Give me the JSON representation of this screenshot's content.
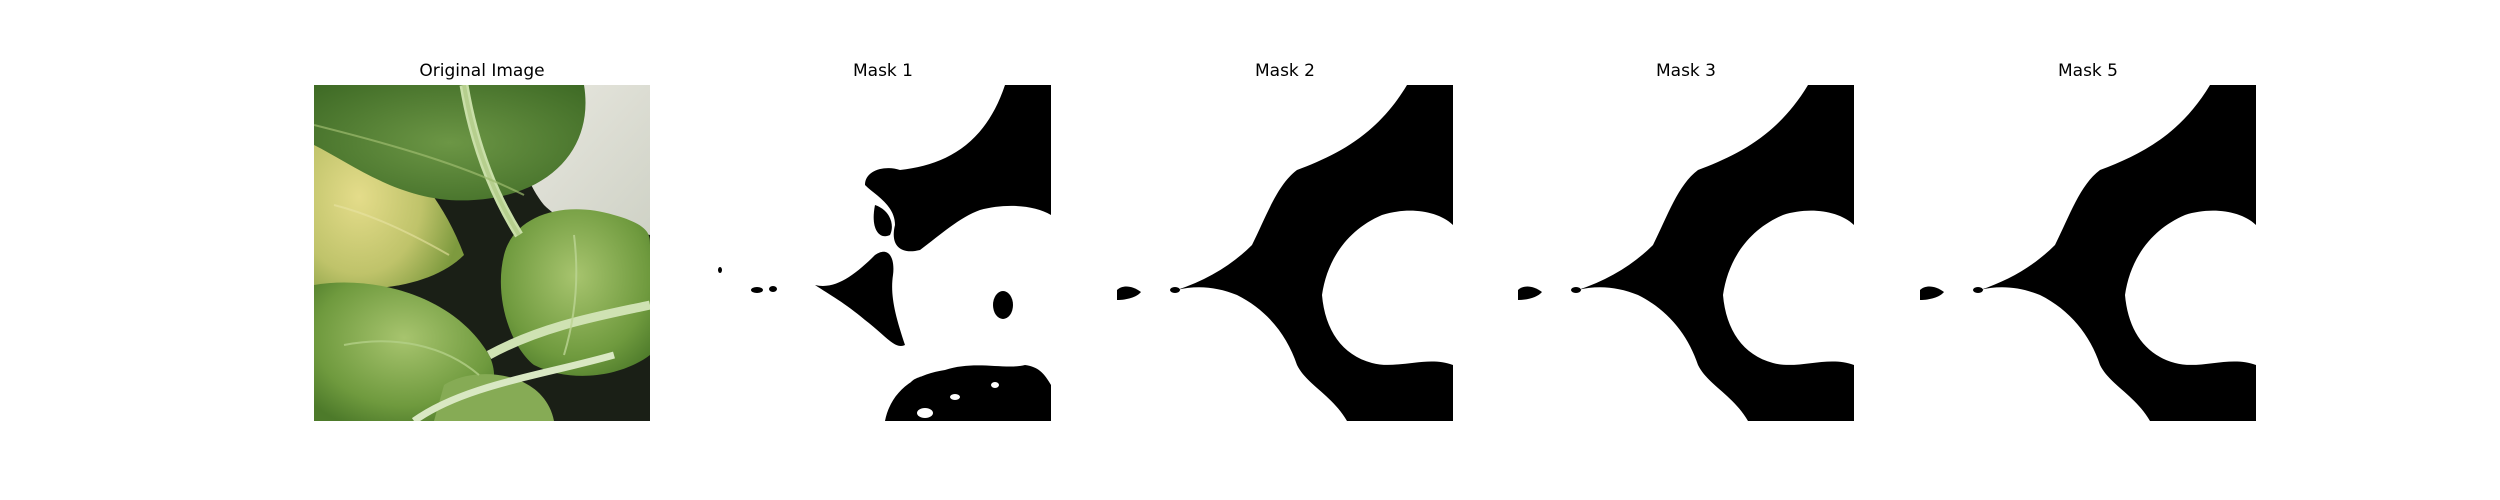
{
  "figure": {
    "panels": [
      {
        "title": "Original Image",
        "kind": "photo"
      },
      {
        "title": "Mask 1",
        "kind": "mask"
      },
      {
        "title": "Mask 2",
        "kind": "mask"
      },
      {
        "title": "Mask 3",
        "kind": "mask"
      },
      {
        "title": "Mask 5",
        "kind": "mask"
      }
    ]
  },
  "colors": {
    "mask_foreground": "#ffffff",
    "mask_background": "#000000",
    "leaf_green": "#6a9a3a",
    "leaf_dark": "#3f6a22",
    "leaf_yellow": "#d8d27a",
    "stem": "#c9dfa8",
    "wall": "#dcdcd2"
  }
}
